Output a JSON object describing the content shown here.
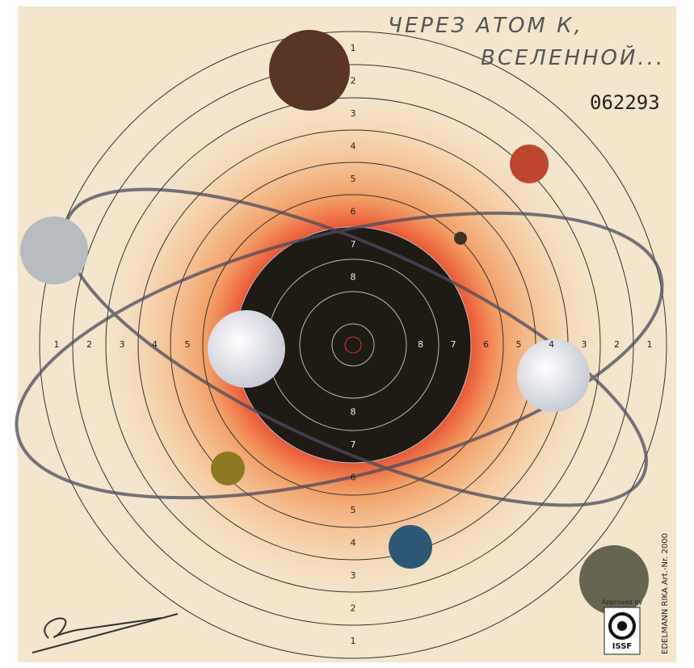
{
  "handwriting": [
    "ЧЕРЕЗ АТОМ К,",
    "ВСЕЛЕННОЙ..."
  ],
  "serial": "062293",
  "ring_labels": {
    "top": [
      "1",
      "2",
      "3",
      "4",
      "5",
      "6",
      "7",
      "8"
    ],
    "bottom": [
      "8",
      "7",
      "6",
      "5",
      "4",
      "3",
      "2",
      "1"
    ],
    "left": [
      "1",
      "2",
      "3",
      "4",
      "5"
    ],
    "right": [
      "8",
      "7",
      "6",
      "5",
      "4",
      "3",
      "2",
      "1"
    ]
  },
  "approval": {
    "caption": "Approved by",
    "badge": "ISSF"
  },
  "maker": "EDELMANN RIKA Art.-Nr. 2000"
}
